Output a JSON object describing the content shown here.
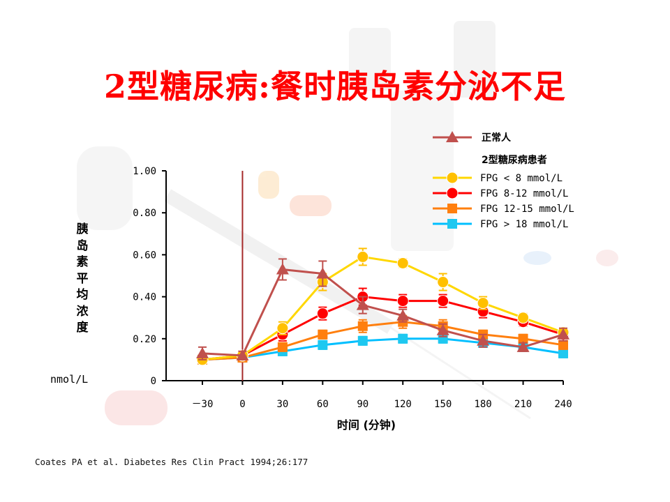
{
  "slide": {
    "title": "2型糖尿病:餐时胰岛素分泌不足",
    "citation": "Coates PA et al. Diabetes Res Clin Pract 1994;26:177"
  },
  "chart_data": {
    "type": "line",
    "xlabel": "时间 (分钟)",
    "ylabel_chars": [
      "胰",
      "岛",
      "素",
      "平",
      "均",
      "浓",
      "度"
    ],
    "yunit": "nmol/L",
    "x": [
      -30,
      0,
      30,
      60,
      90,
      120,
      150,
      180,
      210,
      240
    ],
    "x_tick_labels": [
      "－30",
      "0",
      "30",
      "60",
      "90",
      "120",
      "150",
      "180",
      "210",
      "240"
    ],
    "ylim": [
      0,
      1.0
    ],
    "y_ticks": [
      0,
      0.2,
      0.4,
      0.6,
      0.8,
      1.0
    ],
    "y_tick_labels": [
      "0",
      "0.20",
      "0.40",
      "0.60",
      "0.80",
      "1.00"
    ],
    "meal_marker_x": 0,
    "legend_placement": "top-right",
    "legend_group_title": "2型糖尿病患者",
    "series": [
      {
        "name": "正常人",
        "marker": "triangle",
        "color": "#c0504d",
        "values": [
          0.13,
          0.12,
          0.53,
          0.51,
          0.36,
          0.31,
          0.24,
          0.19,
          0.16,
          0.22
        ],
        "errors": [
          0.03,
          0.02,
          0.05,
          0.06,
          0.04,
          0.03,
          0.03,
          0.03,
          0.02,
          0.03
        ]
      },
      {
        "name": "FPG < 8 mmol/L",
        "marker": "circle",
        "color": "#ffc000",
        "line_color": "#ffd700",
        "values": [
          0.1,
          0.12,
          0.25,
          0.47,
          0.59,
          0.56,
          0.47,
          0.37,
          0.3,
          0.23
        ],
        "errors": [
          0.02,
          0.02,
          0.03,
          0.04,
          0.04,
          0.02,
          0.04,
          0.03,
          0.02,
          0.02
        ]
      },
      {
        "name": "FPG 8-12 mmol/L",
        "marker": "circle",
        "color": "#ff0000",
        "values": [
          0.1,
          0.12,
          0.22,
          0.32,
          0.4,
          0.38,
          0.38,
          0.33,
          0.28,
          0.22
        ],
        "errors": [
          0.02,
          0.02,
          0.03,
          0.03,
          0.04,
          0.03,
          0.03,
          0.03,
          0.02,
          0.02
        ]
      },
      {
        "name": "FPG 12-15 mmol/L",
        "marker": "square",
        "color": "#ff7f0e",
        "values": [
          0.1,
          0.11,
          0.16,
          0.22,
          0.26,
          0.28,
          0.26,
          0.22,
          0.2,
          0.17
        ],
        "errors": [
          0.02,
          0.02,
          0.02,
          0.02,
          0.03,
          0.03,
          0.03,
          0.02,
          0.02,
          0.02
        ]
      },
      {
        "name": "FPG > 18 mmol/L",
        "marker": "square",
        "color": "#1ec8f0",
        "line_color": "#00bfff",
        "values": [
          0.1,
          0.11,
          0.14,
          0.17,
          0.19,
          0.2,
          0.2,
          0.18,
          0.16,
          0.13
        ],
        "errors": [
          0.01,
          0.01,
          0.02,
          0.02,
          0.02,
          0.02,
          0.02,
          0.02,
          0.02,
          0.02
        ]
      }
    ]
  }
}
